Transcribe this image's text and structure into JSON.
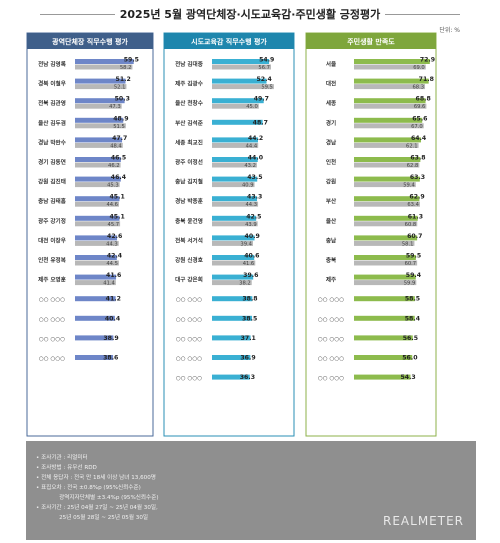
{
  "title": "2025년 5월 광역단체장·시도교육감·주민생활 긍정평가",
  "unit": "단위: %",
  "chart_data": [
    {
      "type": "bar",
      "title": "광역단체장 직무수행 평가",
      "header_color": "#3f5f8a",
      "border_color": "#4a6a9a",
      "current_color": "#6e86c8",
      "prev_color": "#b8b8b8",
      "xlim": [
        0,
        75
      ],
      "categories": [
        "전남 김영록",
        "경북 이철우",
        "전북 김관영",
        "울산 김두겸",
        "경남 박완수",
        "경기 김동연",
        "강원 김진태",
        "충남 김태흠",
        "광주 강기정",
        "대전 이장우",
        "인천 유정복",
        "제주 오영훈",
        "○○ ○○○",
        "○○ ○○○",
        "○○ ○○○",
        "○○ ○○○"
      ],
      "series": [
        {
          "values": [
            59.5,
            51.2,
            50.3,
            48.9,
            47.7,
            46.5,
            46.4,
            45.1,
            45.1,
            42.6,
            42.4,
            41.6,
            41.2,
            40.4,
            38.9,
            38.6
          ]
        },
        {
          "values": [
            58.2,
            52.1,
            47.3,
            51.5,
            48.4,
            46.2,
            45.3,
            44.6,
            45.7,
            44.3,
            44.5,
            41.4,
            null,
            null,
            null,
            null
          ]
        }
      ]
    },
    {
      "type": "bar",
      "title": "시도교육감 직무수행 평가",
      "header_color": "#1e86ad",
      "border_color": "#2a8fb5",
      "current_color": "#3ab0d3",
      "prev_color": "#b8b8b8",
      "xlim": [
        0,
        75
      ],
      "categories": [
        "전남 김대중",
        "제주 김광수",
        "울산 천창수",
        "부산 김석준",
        "세종 최교진",
        "광주 이정선",
        "충남 김지철",
        "경남 박종훈",
        "충북 윤건영",
        "전북 서거석",
        "강원 신경호",
        "대구 강은희",
        "○○ ○○○",
        "○○ ○○○",
        "○○ ○○○",
        "○○ ○○○",
        "○○ ○○○"
      ],
      "series": [
        {
          "values": [
            54.9,
            52.4,
            49.7,
            48.7,
            44.2,
            44.0,
            43.5,
            43.3,
            42.5,
            40.9,
            40.6,
            39.6,
            38.8,
            38.5,
            37.1,
            36.9,
            36.3
          ]
        },
        {
          "values": [
            56.7,
            59.5,
            45.0,
            null,
            44.4,
            43.2,
            40.9,
            44.3,
            43.9,
            39.4,
            41.6,
            38.2,
            null,
            null,
            null,
            null,
            null
          ]
        }
      ]
    },
    {
      "type": "bar",
      "title": "주민생활 만족도",
      "header_color": "#7ea63c",
      "border_color": "#8cb04a",
      "current_color": "#8dbb4d",
      "prev_color": "#b8b8b8",
      "xlim": [
        0,
        75
      ],
      "categories": [
        "서울",
        "대전",
        "세종",
        "경기",
        "경남",
        "인천",
        "강원",
        "부산",
        "울산",
        "충남",
        "충북",
        "제주",
        "○○ ○○○",
        "○○ ○○○",
        "○○ ○○○",
        "○○ ○○○",
        "○○ ○○○"
      ],
      "series": [
        {
          "values": [
            72.9,
            71.8,
            68.8,
            65.6,
            64.4,
            63.8,
            63.3,
            62.9,
            61.3,
            60.7,
            59.5,
            59.4,
            58.5,
            58.4,
            56.5,
            56.0,
            54.3
          ]
        },
        {
          "values": [
            69.0,
            68.3,
            69.6,
            67.0,
            62.1,
            62.8,
            59.4,
            63.4,
            60.8,
            58.1,
            60.7,
            59.9,
            null,
            null,
            null,
            null,
            null
          ]
        }
      ]
    }
  ],
  "footer": {
    "notes": [
      "• 조사기관 : 리얼미터",
      "• 조사방법 : 유무선 RDD",
      "• 전체 응답자 : 전국 만 18세 이상 남녀 13,600명",
      "• 표집오차 : 전국 ±0.8%p (95%신뢰수준)",
      "             광역지자단체별 ±3.4%p (95%신뢰수준)",
      "• 조사기간 : 25년 04월 27일 ~ 25년 04월 30일,",
      "             25년 05월 28일 ~ 25년 05월 30일"
    ],
    "brand": "REALMETER"
  }
}
